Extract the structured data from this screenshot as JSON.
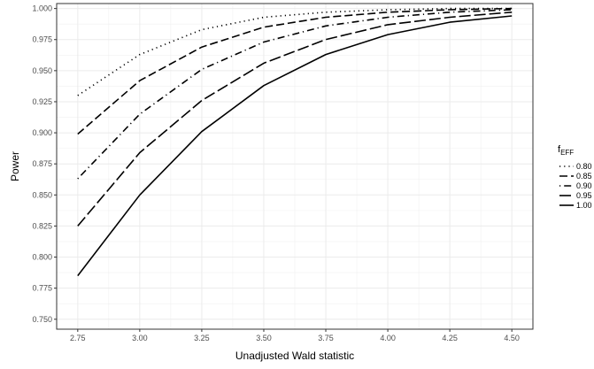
{
  "chart_data": {
    "type": "line",
    "title": "",
    "xlabel": "Unadjusted Wald statistic",
    "ylabel": "Power",
    "xlim": [
      2.665,
      4.585
    ],
    "ylim": [
      0.742,
      1.004
    ],
    "x_ticks": [
      "2.75",
      "3.00",
      "3.25",
      "3.50",
      "3.75",
      "4.00",
      "4.25",
      "4.50"
    ],
    "y_ticks": [
      "0.750",
      "0.775",
      "0.800",
      "0.825",
      "0.850",
      "0.875",
      "0.900",
      "0.925",
      "0.950",
      "0.975",
      "1.000"
    ],
    "grid": true,
    "legend": {
      "title_main": "f",
      "title_sub": "EFF",
      "position": "right",
      "entries": [
        "0.80",
        "0.85",
        "0.90",
        "0.95",
        "1.00"
      ]
    },
    "x": [
      2.75,
      3.0,
      3.25,
      3.5,
      3.75,
      4.0,
      4.25,
      4.5
    ],
    "series": [
      {
        "name": "0.80",
        "dash": "dotted",
        "values": [
          0.93,
          0.963,
          0.983,
          0.993,
          0.997,
          0.999,
          1.0,
          1.0
        ]
      },
      {
        "name": "0.85",
        "dash": "dashed",
        "values": [
          0.899,
          0.942,
          0.969,
          0.985,
          0.993,
          0.997,
          0.999,
          1.0
        ]
      },
      {
        "name": "0.90",
        "dash": "dotdash",
        "values": [
          0.863,
          0.915,
          0.951,
          0.973,
          0.986,
          0.993,
          0.997,
          0.999
        ]
      },
      {
        "name": "0.95",
        "dash": "longdash",
        "values": [
          0.825,
          0.884,
          0.926,
          0.956,
          0.975,
          0.987,
          0.993,
          0.997
        ]
      },
      {
        "name": "1.00",
        "dash": "solid",
        "values": [
          0.785,
          0.85,
          0.901,
          0.938,
          0.963,
          0.979,
          0.989,
          0.994
        ]
      }
    ]
  }
}
